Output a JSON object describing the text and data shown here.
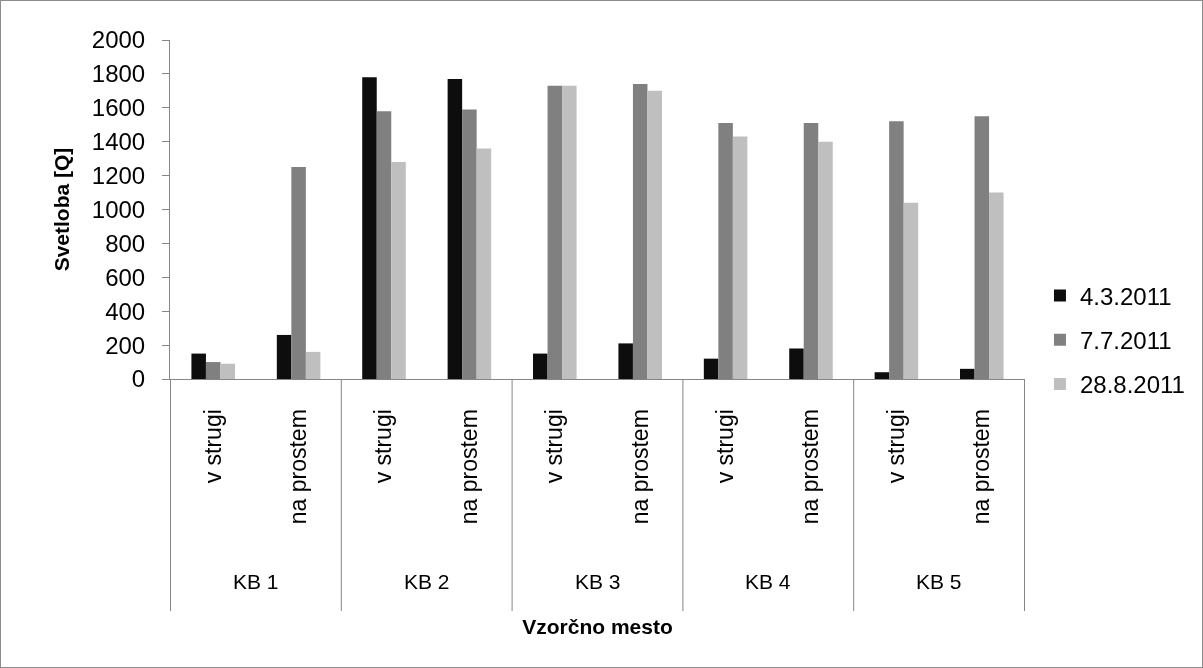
{
  "chart_data": {
    "type": "bar",
    "categories": [
      "v strugi",
      "na prostem",
      "v strugi",
      "na prostem",
      "v strugi",
      "na prostem",
      "v strugi",
      "na prostem",
      "v strugi",
      "na prostem"
    ],
    "annotations": [
      "KB 1",
      "KB 2",
      "KB 3",
      "KB 4",
      "KB 5"
    ],
    "series": [
      {
        "name": "4.3.2011",
        "color": "#0d0d0d",
        "values": [
          150,
          260,
          1780,
          1770,
          150,
          210,
          120,
          180,
          40,
          60
        ]
      },
      {
        "name": "7.7.2011",
        "color": "#808080",
        "values": [
          100,
          1250,
          1580,
          1590,
          1730,
          1740,
          1510,
          1510,
          1520,
          1550
        ]
      },
      {
        "name": "28.8.2011",
        "color": "#bfbfbf",
        "values": [
          90,
          160,
          1280,
          1360,
          1730,
          1700,
          1430,
          1400,
          1040,
          1100
        ]
      }
    ],
    "xlabel": "Vzorčno mesto",
    "ylabel": "Svetloba [Q]",
    "ylim": [
      0,
      2000
    ],
    "yticks": [
      0,
      200,
      400,
      600,
      800,
      1000,
      1200,
      1400,
      1600,
      1800,
      2000
    ],
    "legend": "right"
  }
}
